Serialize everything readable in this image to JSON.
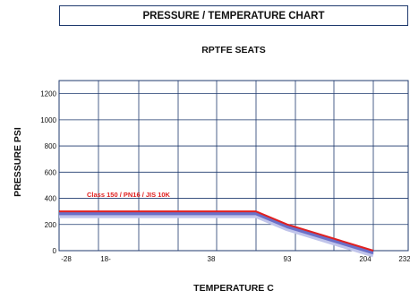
{
  "chart_data": {
    "type": "line",
    "title": "PRESSURE  / TEMPERATURE CHART",
    "subtitle": "RPTFE SEATS",
    "xlabel": "TEMPERATURE C",
    "ylabel": "PRESSURE PSI",
    "x_tick_labels": [
      "-28",
      "18-",
      "38",
      "93",
      "204",
      "232"
    ],
    "y_ticks": [
      0,
      200,
      400,
      600,
      800,
      1000,
      1200
    ],
    "ylim": [
      0,
      1300
    ],
    "grid": true,
    "x_category_positions": [
      0,
      1,
      2,
      3,
      4,
      5,
      6,
      7,
      8,
      9,
      10
    ],
    "series": [
      {
        "name": "Class 150 / PN16 / JIS 10K",
        "x": [
          -28,
          18,
          38,
          65,
          93,
          204
        ],
        "y": [
          300,
          300,
          300,
          300,
          200,
          0
        ],
        "color": "#e02020"
      }
    ],
    "series_shadow_colors": [
      "#6a70c8",
      "#c0c4ea"
    ]
  }
}
